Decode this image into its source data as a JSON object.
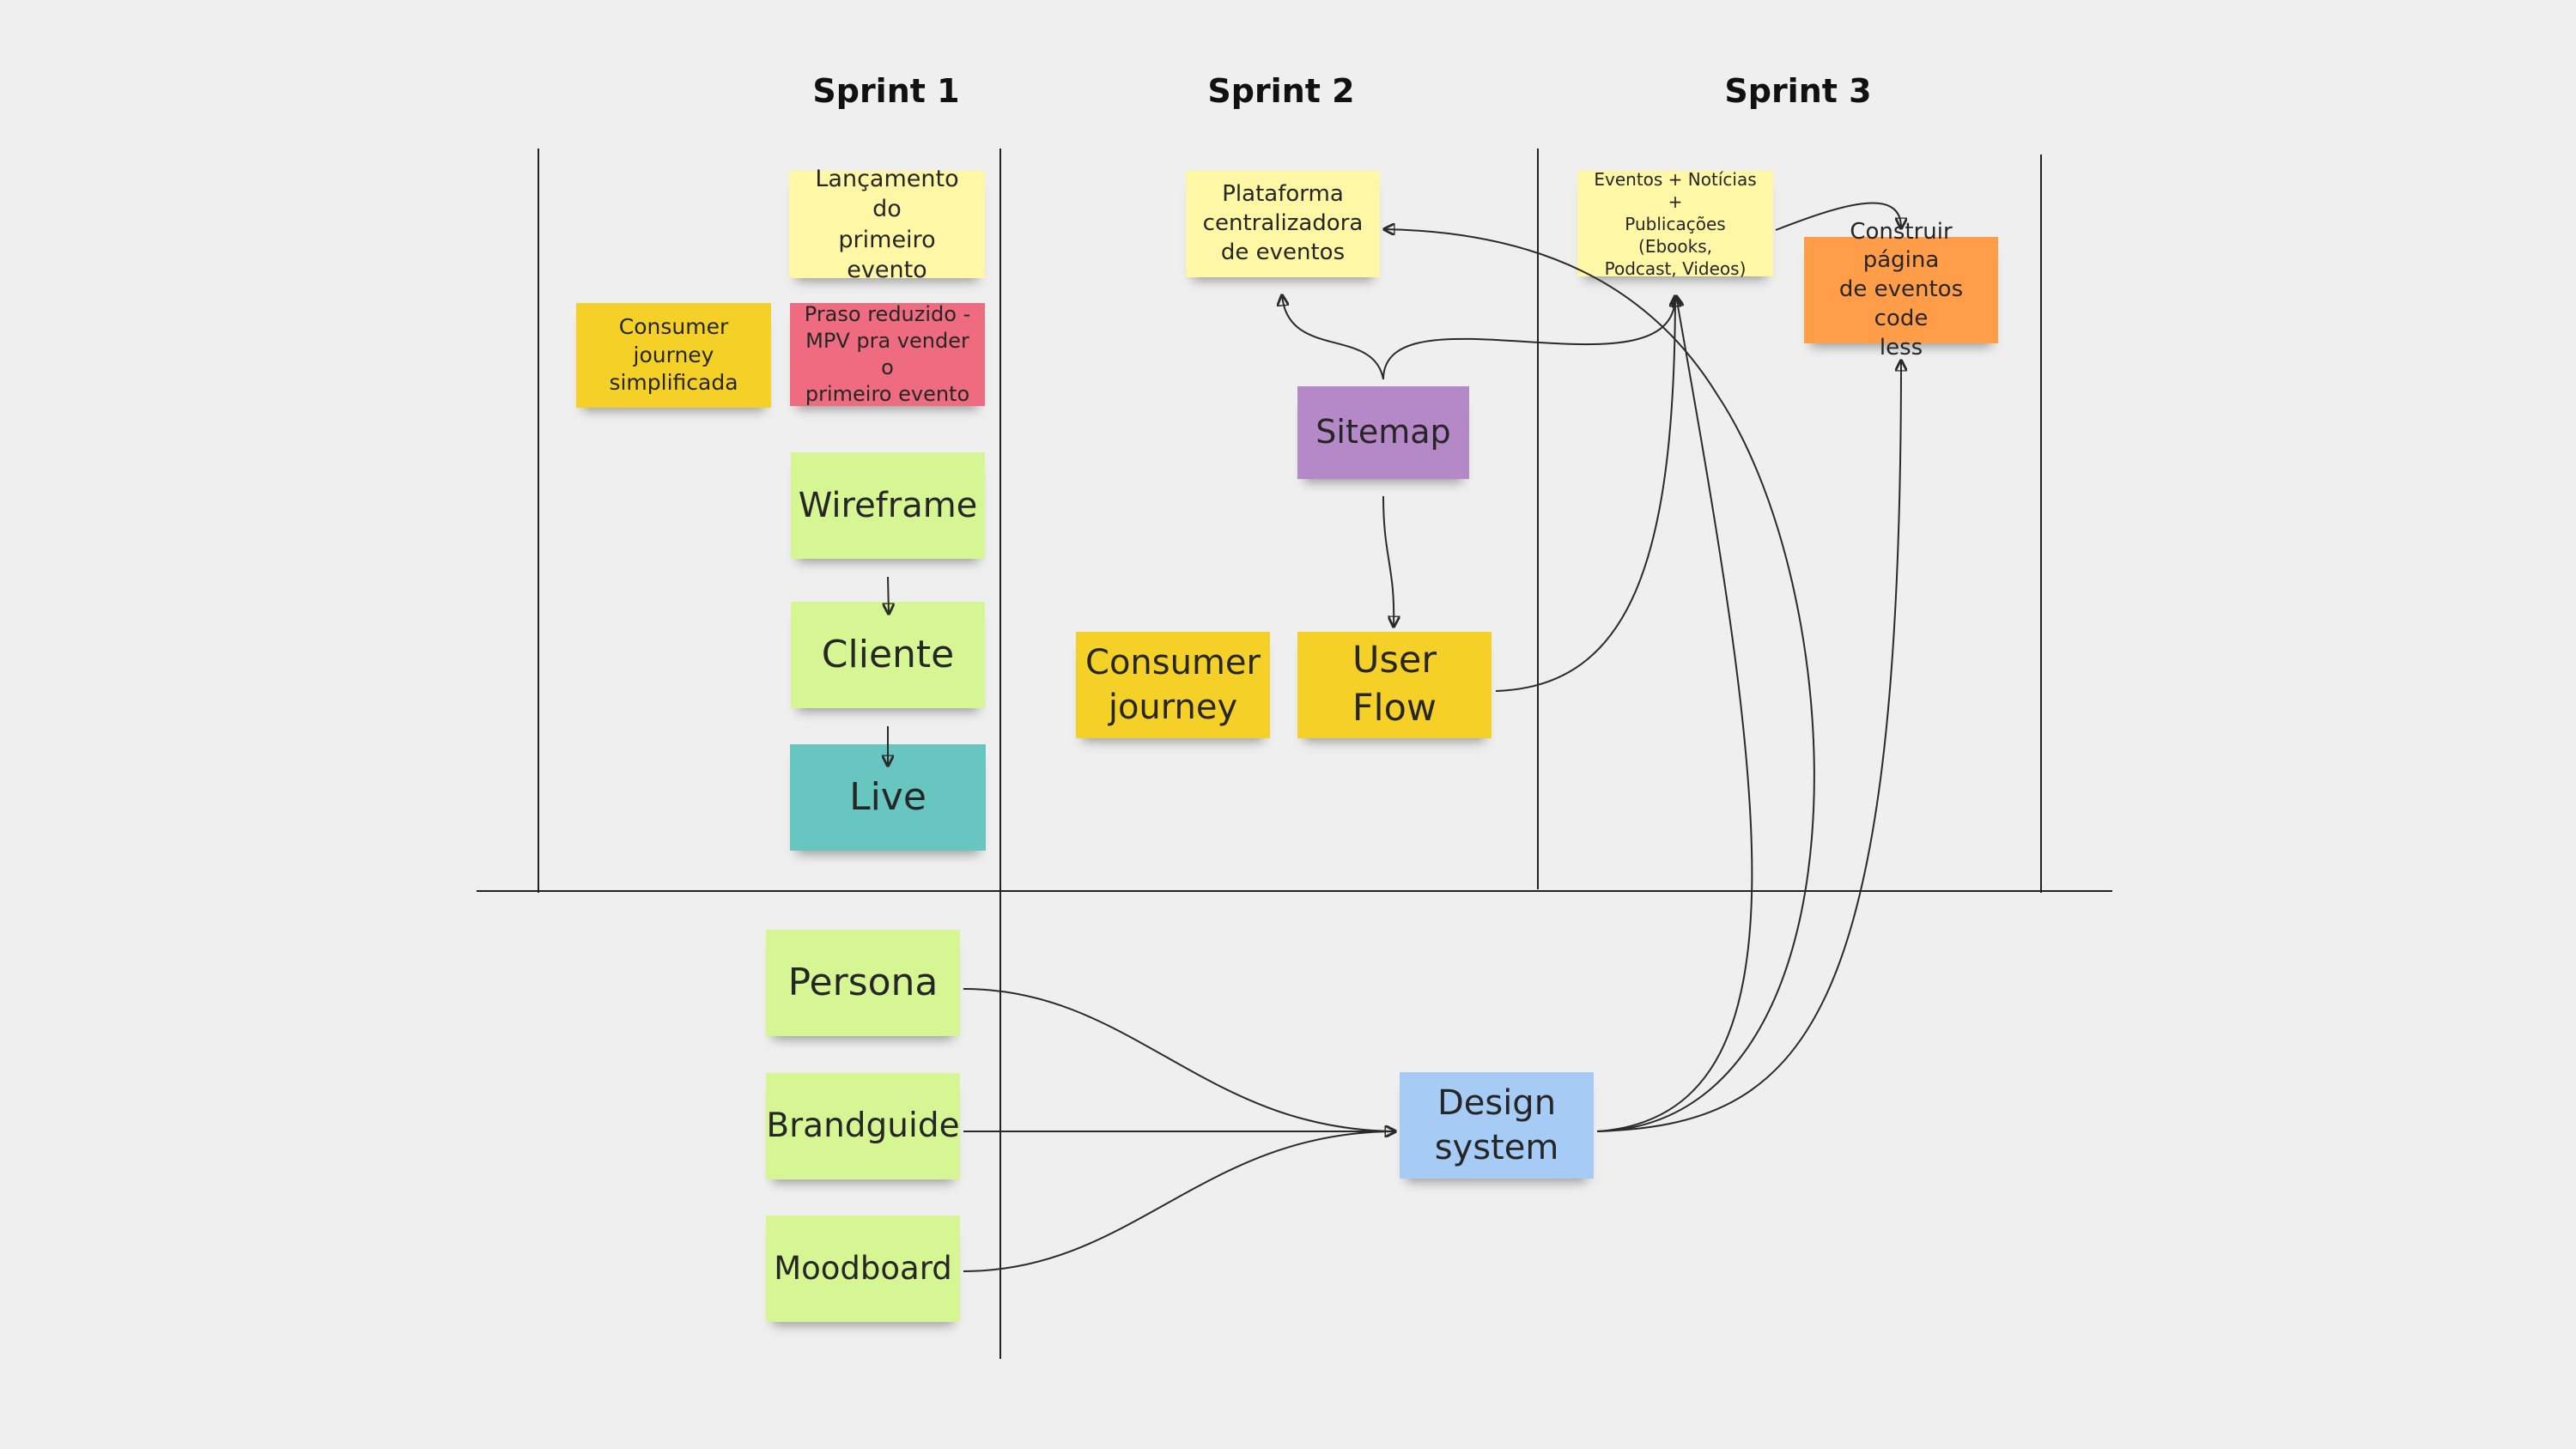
{
  "colors": {
    "canvas": "#efefef",
    "light_yellow": "#fdf7a6",
    "yellow": "#f5d128",
    "pink": "#ef6c80",
    "light_green": "#d5f692",
    "teal": "#67c6c0",
    "violet": "#b588c7",
    "blue": "#a6ccf5",
    "orange": "#ff9d48"
  },
  "sprints": [
    {
      "label": "Sprint 1"
    },
    {
      "label": "Sprint 2"
    },
    {
      "label": "Sprint 3"
    }
  ],
  "notes": {
    "lancamento": {
      "text": "Lançamento do\nprimeiro evento",
      "color": "light_yellow"
    },
    "consumer_simplificada": {
      "text": "Consumer\njourney\nsimplificada",
      "color": "yellow"
    },
    "praso": {
      "text": "Praso reduzido -\nMPV pra vender o\nprimeiro evento",
      "color": "pink"
    },
    "wireframe": {
      "text": "Wireframe",
      "color": "light_green"
    },
    "cliente": {
      "text": "Cliente",
      "color": "light_green"
    },
    "live": {
      "text": "Live",
      "color": "teal"
    },
    "plataforma": {
      "text": "Plataforma\ncentralizadora\nde eventos",
      "color": "light_yellow"
    },
    "sitemap": {
      "text": "Sitemap",
      "color": "violet"
    },
    "consumer_journey": {
      "text": "Consumer\njourney",
      "color": "yellow"
    },
    "user_flow": {
      "text": "User Flow",
      "color": "yellow"
    },
    "eventos": {
      "text": "Eventos + Notícias +\nPublicações (Ebooks,\nPodcast, Videos)",
      "color": "light_yellow"
    },
    "construir": {
      "text": "Construir página\nde eventos code\nless",
      "color": "orange"
    },
    "persona": {
      "text": "Persona",
      "color": "light_green"
    },
    "brandguide": {
      "text": "Brandguide",
      "color": "light_green"
    },
    "moodboard": {
      "text": "Moodboard",
      "color": "light_green"
    },
    "design_system": {
      "text": "Design\nsystem",
      "color": "blue"
    }
  }
}
